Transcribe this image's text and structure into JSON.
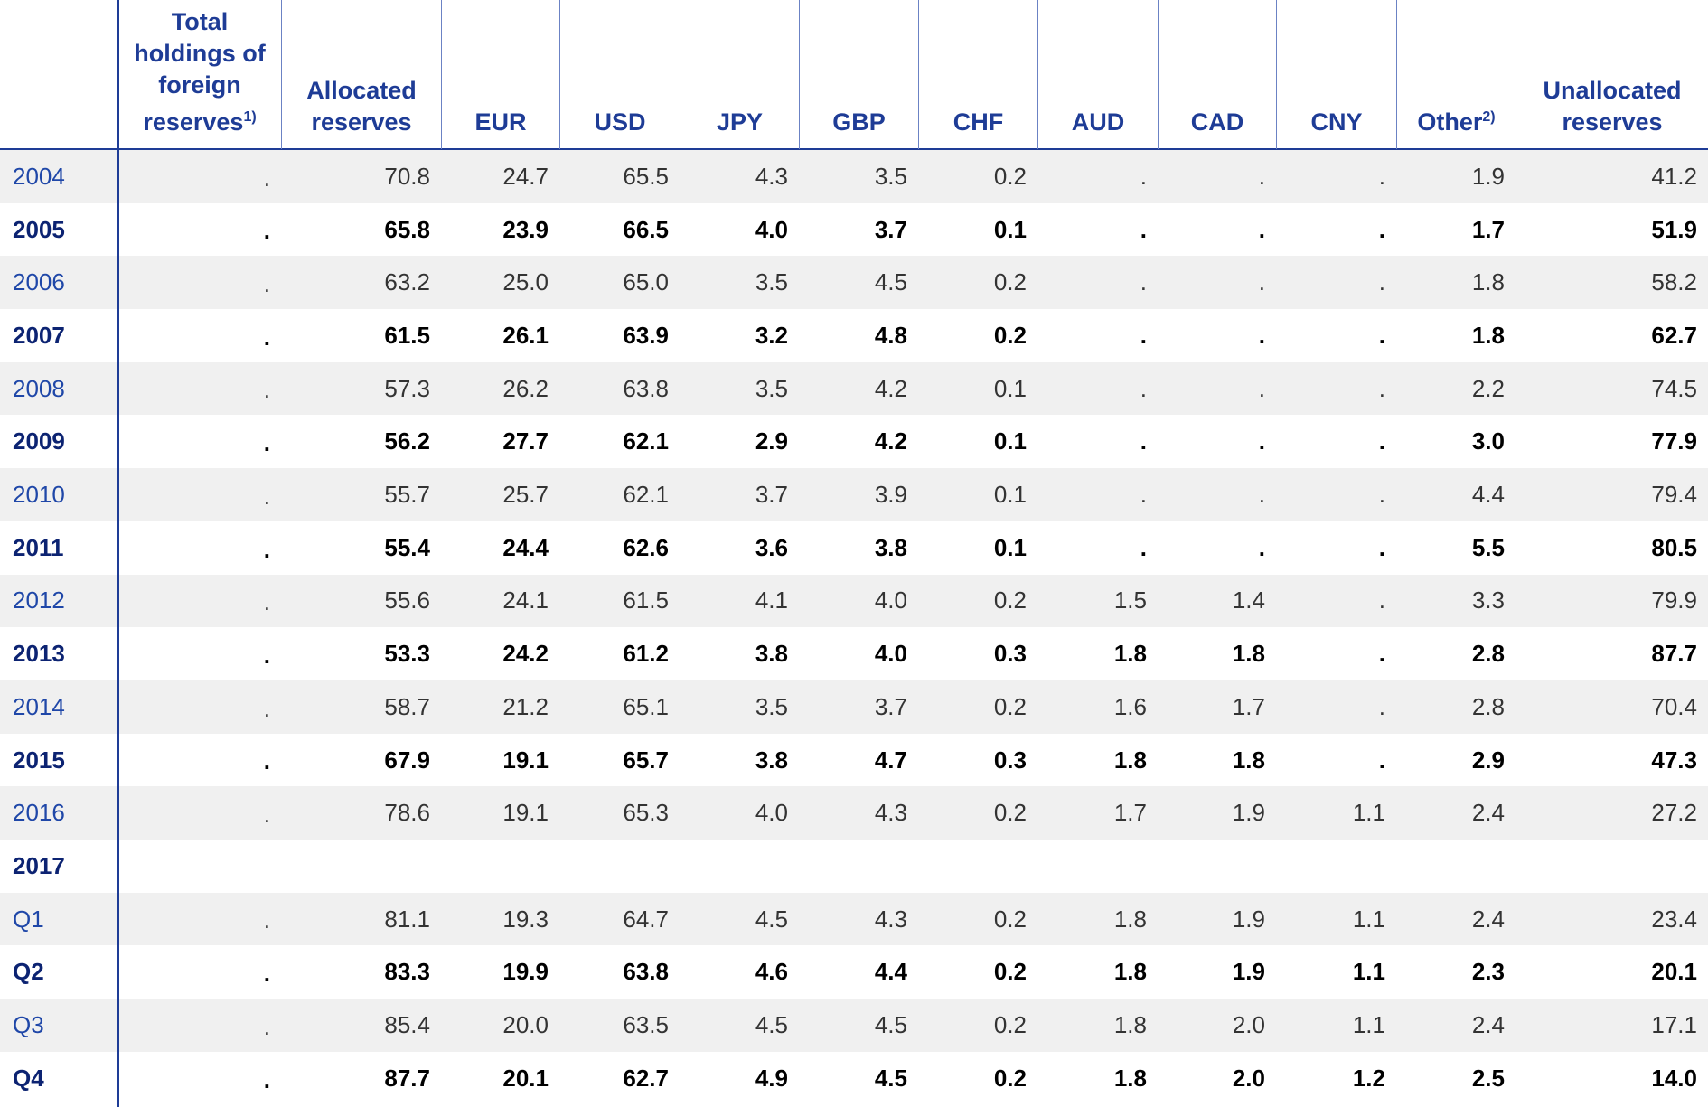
{
  "header": {
    "columns": [
      {
        "text": "Total holdings of foreign reserves",
        "note": "1)"
      },
      {
        "text": "Allocated reserves"
      },
      {
        "text": "EUR"
      },
      {
        "text": "USD"
      },
      {
        "text": "JPY"
      },
      {
        "text": "GBP"
      },
      {
        "text": "CHF"
      },
      {
        "text": "AUD"
      },
      {
        "text": "CAD"
      },
      {
        "text": "CNY"
      },
      {
        "text": "Other",
        "note": "2)"
      },
      {
        "text": "Unallocated reserves"
      }
    ]
  },
  "rows": [
    {
      "label": "2004",
      "cells": [
        ".",
        "70.8",
        "24.7",
        "65.5",
        "4.3",
        "3.5",
        "0.2",
        ".",
        ".",
        ".",
        "1.9",
        "41.2"
      ]
    },
    {
      "label": "2005",
      "cells": [
        ".",
        "65.8",
        "23.9",
        "66.5",
        "4.0",
        "3.7",
        "0.1",
        ".",
        ".",
        ".",
        "1.7",
        "51.9"
      ]
    },
    {
      "label": "2006",
      "cells": [
        ".",
        "63.2",
        "25.0",
        "65.0",
        "3.5",
        "4.5",
        "0.2",
        ".",
        ".",
        ".",
        "1.8",
        "58.2"
      ]
    },
    {
      "label": "2007",
      "cells": [
        ".",
        "61.5",
        "26.1",
        "63.9",
        "3.2",
        "4.8",
        "0.2",
        ".",
        ".",
        ".",
        "1.8",
        "62.7"
      ]
    },
    {
      "label": "2008",
      "cells": [
        ".",
        "57.3",
        "26.2",
        "63.8",
        "3.5",
        "4.2",
        "0.1",
        ".",
        ".",
        ".",
        "2.2",
        "74.5"
      ]
    },
    {
      "label": "2009",
      "cells": [
        ".",
        "56.2",
        "27.7",
        "62.1",
        "2.9",
        "4.2",
        "0.1",
        ".",
        ".",
        ".",
        "3.0",
        "77.9"
      ]
    },
    {
      "label": "2010",
      "cells": [
        ".",
        "55.7",
        "25.7",
        "62.1",
        "3.7",
        "3.9",
        "0.1",
        ".",
        ".",
        ".",
        "4.4",
        "79.4"
      ]
    },
    {
      "label": "2011",
      "cells": [
        ".",
        "55.4",
        "24.4",
        "62.6",
        "3.6",
        "3.8",
        "0.1",
        ".",
        ".",
        ".",
        "5.5",
        "80.5"
      ]
    },
    {
      "label": "2012",
      "cells": [
        ".",
        "55.6",
        "24.1",
        "61.5",
        "4.1",
        "4.0",
        "0.2",
        "1.5",
        "1.4",
        ".",
        "3.3",
        "79.9"
      ]
    },
    {
      "label": "2013",
      "cells": [
        ".",
        "53.3",
        "24.2",
        "61.2",
        "3.8",
        "4.0",
        "0.3",
        "1.8",
        "1.8",
        ".",
        "2.8",
        "87.7"
      ]
    },
    {
      "label": "2014",
      "cells": [
        ".",
        "58.7",
        "21.2",
        "65.1",
        "3.5",
        "3.7",
        "0.2",
        "1.6",
        "1.7",
        ".",
        "2.8",
        "70.4"
      ]
    },
    {
      "label": "2015",
      "cells": [
        ".",
        "67.9",
        "19.1",
        "65.7",
        "3.8",
        "4.7",
        "0.3",
        "1.8",
        "1.8",
        ".",
        "2.9",
        "47.3"
      ]
    },
    {
      "label": "2016",
      "cells": [
        ".",
        "78.6",
        "19.1",
        "65.3",
        "4.0",
        "4.3",
        "0.2",
        "1.7",
        "1.9",
        "1.1",
        "2.4",
        "27.2"
      ]
    },
    {
      "label": "2017",
      "cells": []
    },
    {
      "label": "Q1",
      "cells": [
        ".",
        "81.1",
        "19.3",
        "64.7",
        "4.5",
        "4.3",
        "0.2",
        "1.8",
        "1.9",
        "1.1",
        "2.4",
        "23.4"
      ]
    },
    {
      "label": "Q2",
      "cells": [
        ".",
        "83.3",
        "19.9",
        "63.8",
        "4.6",
        "4.4",
        "0.2",
        "1.8",
        "1.9",
        "1.1",
        "2.3",
        "20.1"
      ]
    },
    {
      "label": "Q3",
      "cells": [
        ".",
        "85.4",
        "20.0",
        "63.5",
        "4.5",
        "4.5",
        "0.2",
        "1.8",
        "2.0",
        "1.1",
        "2.4",
        "17.1"
      ]
    },
    {
      "label": "Q4",
      "cells": [
        ".",
        "87.7",
        "20.1",
        "62.7",
        "4.9",
        "4.5",
        "0.2",
        "1.8",
        "2.0",
        "1.2",
        "2.5",
        "14.0"
      ]
    }
  ]
}
